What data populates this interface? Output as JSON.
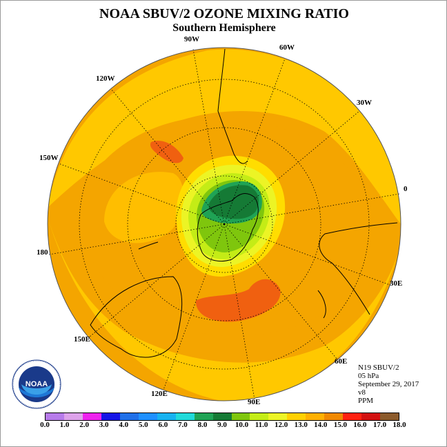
{
  "title": "NOAA SBUV/2 OZONE MIXING RATIO",
  "subtitle": "Southern Hemisphere",
  "info": [
    "N19 SBUV/2",
    "05 hPa",
    "September 29, 2017",
    "v8",
    "PPM"
  ],
  "longitude_labels": [
    "90W",
    "60W",
    "30W",
    "0",
    "30E",
    "60E",
    "90E",
    "120E",
    "150E",
    "180",
    "150W",
    "120W"
  ],
  "colorbar": {
    "ticks": [
      "0.0",
      "1.0",
      "2.0",
      "3.0",
      "4.0",
      "5.0",
      "6.0",
      "7.0",
      "8.0",
      "9.0",
      "10.0",
      "11.0",
      "12.0",
      "13.0",
      "14.0",
      "15.0",
      "16.0",
      "17.0",
      "18.0"
    ],
    "colors": [
      "#b77bea",
      "#dda2ea",
      "#ee22ee",
      "#1414e6",
      "#1f6fe8",
      "#1e90ff",
      "#16b2f0",
      "#20dada",
      "#1fa355",
      "#157a35",
      "#7fc60d",
      "#c4ec16",
      "#ecf425",
      "#ffd000",
      "#ffb000",
      "#f08800",
      "#ff2010",
      "#d21010"
    ],
    "colors_extra": "#8b5a2b"
  },
  "logo": {
    "text": "NOAA",
    "ring": "NATIONAL OCEANIC AND ATMOSPHERIC ADMINISTRATION",
    "ring2": "U.S. DEPARTMENT OF COMMERCE"
  }
}
